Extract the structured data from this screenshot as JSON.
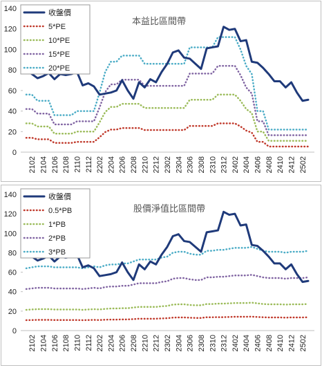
{
  "chart_data": [
    {
      "type": "line",
      "title": "本益比區間帶",
      "categories": [
        null,
        "2102",
        null,
        "2104",
        null,
        "2106",
        null,
        "2108",
        null,
        "2110",
        null,
        "2112",
        null,
        "2202",
        null,
        "2204",
        null,
        "2206",
        null,
        "2208",
        null,
        "2210",
        null,
        "2212",
        null,
        "2302",
        null,
        "2304",
        null,
        "2306",
        null,
        "2308",
        null,
        "2310",
        null,
        "2312",
        null,
        "2402",
        null,
        "2404",
        null,
        "2406",
        null,
        "2408",
        null,
        "2410",
        null,
        "2412",
        null,
        "2502",
        null
      ],
      "ylim": [
        0,
        140
      ],
      "yticks": [
        0,
        20,
        40,
        60,
        80,
        100,
        120,
        140
      ],
      "legend": "upper left",
      "series": [
        {
          "name": "收盤價",
          "color": "#1f3a7a",
          "style": "solid",
          "values": [
            80,
            76,
            72,
            74,
            77,
            71,
            76,
            75,
            76,
            78,
            65,
            67,
            64,
            56,
            57,
            58,
            60,
            70,
            60,
            52,
            68,
            63,
            71,
            68,
            78,
            86,
            97,
            99,
            92,
            91,
            86,
            81,
            101,
            102,
            103,
            122,
            119,
            120,
            108,
            109,
            88,
            87,
            82,
            76,
            69,
            69,
            63,
            68,
            58,
            50,
            51
          ]
        },
        {
          "name": "5*PE",
          "color": "#c0392b",
          "style": "dotted",
          "values": [
            14,
            14,
            12.5,
            12.5,
            12.5,
            9,
            9,
            9,
            9,
            10,
            10,
            10,
            10,
            14.5,
            19.5,
            22,
            22,
            23.5,
            23.5,
            23.5,
            23.5,
            21.5,
            21.5,
            21.5,
            21.5,
            21.5,
            21.5,
            21.5,
            21.5,
            25.5,
            25.5,
            25.5,
            25.5,
            25.5,
            28,
            28,
            28,
            28,
            25,
            21,
            19,
            10,
            10,
            5.5,
            5.5,
            5.5,
            5.5,
            5.5,
            5.5,
            5.5,
            5.5
          ]
        },
        {
          "name": "10*PE",
          "color": "#9bbb59",
          "style": "dotted",
          "values": [
            28,
            28,
            25,
            25,
            25,
            18,
            18,
            18,
            18,
            20,
            20,
            20,
            20,
            29,
            39,
            44,
            44,
            47,
            47,
            47,
            47,
            43,
            43,
            43,
            43,
            43,
            43,
            43,
            43,
            51,
            51,
            51,
            51,
            51,
            56,
            56,
            56,
            56,
            50,
            42,
            38,
            20,
            20,
            11,
            11,
            11,
            11,
            11,
            11,
            11,
            11
          ]
        },
        {
          "name": "15*PE",
          "color": "#8064a2",
          "style": "dotted",
          "values": [
            42,
            42,
            37.5,
            37.5,
            37.5,
            27,
            27,
            27,
            27,
            30,
            30,
            30,
            30,
            43.5,
            58.5,
            66,
            66,
            70.5,
            70.5,
            70.5,
            70.5,
            64.5,
            64.5,
            64.5,
            64.5,
            64.5,
            64.5,
            64.5,
            64.5,
            76.5,
            76.5,
            76.5,
            76.5,
            76.5,
            84,
            84,
            84,
            84,
            75,
            63,
            57,
            30,
            30,
            16.5,
            16.5,
            16.5,
            16.5,
            16.5,
            16.5,
            16.5,
            16.5
          ]
        },
        {
          "name": "20*PE",
          "color": "#4bacc6",
          "style": "dotted",
          "values": [
            56,
            56,
            50,
            50,
            50,
            36,
            36,
            36,
            36,
            40,
            40,
            40,
            40,
            58,
            78,
            88,
            88,
            94,
            94,
            94,
            94,
            86,
            86,
            86,
            86,
            86,
            86,
            86,
            86,
            102,
            102,
            102,
            102,
            102,
            112,
            112,
            112,
            112,
            100,
            84,
            76,
            40,
            40,
            22,
            22,
            22,
            22,
            22,
            22,
            22,
            22
          ]
        }
      ]
    },
    {
      "type": "line",
      "title": "股價淨值比區間帶",
      "categories": [
        null,
        "2102",
        null,
        "2104",
        null,
        "2106",
        null,
        "2108",
        null,
        "2110",
        null,
        "2112",
        null,
        "2202",
        null,
        "2204",
        null,
        "2206",
        null,
        "2208",
        null,
        "2210",
        null,
        "2212",
        null,
        "2302",
        null,
        "2304",
        null,
        "2306",
        null,
        "2308",
        null,
        "2310",
        null,
        "2312",
        null,
        "2402",
        null,
        "2404",
        null,
        "2406",
        null,
        "2408",
        null,
        "2410",
        null,
        "2412",
        null,
        "2502",
        null
      ],
      "ylim": [
        0,
        140
      ],
      "yticks": [
        0,
        20,
        40,
        60,
        80,
        100,
        120,
        140
      ],
      "legend": "upper left",
      "series": [
        {
          "name": "收盤價",
          "color": "#1f3a7a",
          "style": "solid",
          "values": [
            80,
            76,
            72,
            74,
            77,
            71,
            76,
            75,
            76,
            78,
            65,
            67,
            64,
            56,
            57,
            58,
            60,
            70,
            60,
            52,
            68,
            63,
            71,
            68,
            78,
            86,
            97,
            99,
            92,
            91,
            86,
            81,
            101,
            102,
            103,
            122,
            119,
            120,
            108,
            109,
            88,
            87,
            82,
            76,
            69,
            69,
            63,
            68,
            58,
            50,
            51
          ]
        },
        {
          "name": "0.5*PB",
          "color": "#c0392b",
          "style": "dotted",
          "values": [
            10.7,
            10.8,
            11,
            11,
            11,
            10.8,
            10.8,
            10.8,
            10.8,
            10.8,
            10.7,
            10.8,
            11,
            10.8,
            11.2,
            11.3,
            11.3,
            11.5,
            11.5,
            11.8,
            12.2,
            12.2,
            12.2,
            12.2,
            12.5,
            12.7,
            13.3,
            13.5,
            13.5,
            13.2,
            13,
            13,
            13.7,
            13.7,
            13.8,
            13.8,
            14,
            14.2,
            14.2,
            14.2,
            14.3,
            14,
            13.7,
            13.5,
            13.5,
            13.5,
            13.3,
            13.5,
            13.5,
            13.5,
            13.7
          ]
        },
        {
          "name": "1*PB",
          "color": "#9bbb59",
          "style": "dotted",
          "values": [
            21.3,
            21.7,
            22,
            22,
            22,
            21.7,
            21.7,
            21.7,
            21.7,
            21.7,
            21.3,
            21.7,
            22,
            21.7,
            22.3,
            22.7,
            22.7,
            23,
            23,
            23.7,
            24.3,
            24.3,
            24.3,
            24.3,
            25,
            25.3,
            26.7,
            27,
            27,
            26.3,
            26,
            26,
            27.3,
            27.3,
            27.7,
            27.7,
            28,
            28.3,
            28.3,
            28.3,
            28.7,
            28,
            27.3,
            27,
            27,
            27,
            26.7,
            27,
            27,
            27,
            27.3
          ]
        },
        {
          "name": "2*PB",
          "color": "#8064a2",
          "style": "dotted",
          "values": [
            42.7,
            43.3,
            44,
            44,
            44,
            43.3,
            43.3,
            43.3,
            43.3,
            43.3,
            42.7,
            43.3,
            44,
            43.3,
            44.7,
            45.3,
            45.3,
            46,
            46,
            47.3,
            48.7,
            48.7,
            48.7,
            48.7,
            50,
            50.7,
            53.3,
            54,
            54,
            52.7,
            52,
            52,
            54.7,
            54.7,
            55.3,
            55.3,
            56,
            56.7,
            56.7,
            56.7,
            57.3,
            56,
            54.7,
            54,
            54,
            54,
            53.3,
            54,
            54,
            54,
            54.7
          ]
        },
        {
          "name": "3*PB",
          "color": "#4bacc6",
          "style": "dotted",
          "values": [
            64,
            65,
            66,
            66,
            66,
            65,
            65,
            65,
            65,
            65,
            64,
            65,
            66,
            65,
            67,
            68,
            68,
            69,
            69,
            71,
            73,
            73,
            73,
            73,
            75,
            76,
            80,
            81,
            81,
            79,
            78,
            78,
            82,
            82,
            83,
            83,
            84,
            85,
            85,
            85,
            86,
            84,
            82,
            81,
            81,
            81,
            80,
            81,
            81,
            81,
            82
          ]
        }
      ]
    }
  ]
}
